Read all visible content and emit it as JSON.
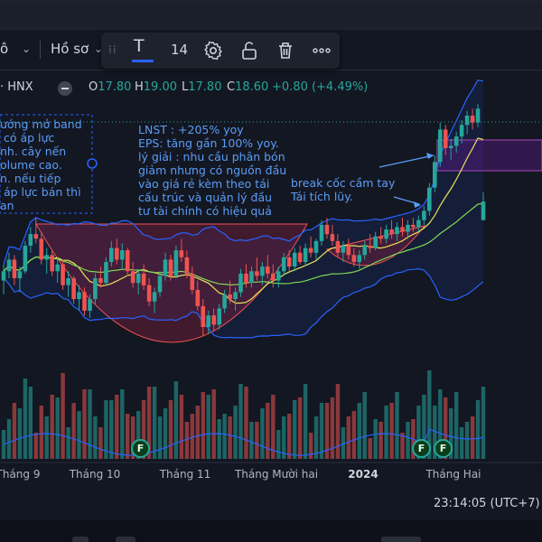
{
  "toolbar": {
    "left_fragment": "ô",
    "profile_label": "Hồ sơ",
    "text_tool_glyph": "T",
    "font_size": "14",
    "icons": [
      "chevron-down-icon",
      "drag-handle-icon",
      "text-icon",
      "settings-icon",
      "unlock-icon",
      "trash-icon",
      "more-icon"
    ]
  },
  "legend": {
    "symbol_fragment": "· HNX",
    "open_label": "O",
    "open": "17.80",
    "high_label": "H",
    "high": "19.00",
    "low_label": "L",
    "low": "17.80",
    "close_label": "C",
    "close": "18.60",
    "change": "+0.80 (+4.49%)"
  },
  "notes": {
    "left": "ướng mở band\n có áp lực\nnh. cây nến\nolume cao.\nn. nếu tiếp\n áp lực bán thì\nan",
    "middle": "LNST : +205% yoy\nEPS: tăng gần 100% yoy.\nlý giải : nhu cầu phân bón\ngiảm nhưng có nguồn đầu\nvào giá rẻ kèm theo tái\ncấu trúc và quản lý đầu\ntư tài chính có hiệu quả",
    "right": "break cốc cầm tay\nTái tích lũy."
  },
  "time_axis": [
    "Tháng 9",
    "Tháng 10",
    "Tháng 11",
    "Tháng Mười hai",
    "2024",
    "Tháng Hai"
  ],
  "clock": "23:14:05 (UTC+7)",
  "badges": [
    "F",
    "F",
    "F"
  ],
  "colors": {
    "background": "#131722",
    "up": "#26a69a",
    "down": "#ef5350",
    "ma_yellow": "#e8e35a",
    "ma_green": "#7ed957",
    "bollinger": "#2962ff",
    "annotation": "#5b9cf6",
    "cup_fill": "#7a1f3d"
  },
  "chart_data": {
    "type": "candlestick",
    "symbol": "HNX",
    "series_candles": [
      [
        15.2,
        15.9,
        14.6,
        15.6
      ],
      [
        15.6,
        16.4,
        15.3,
        16.1
      ],
      [
        16.1,
        16.3,
        15.0,
        15.3
      ],
      [
        15.3,
        15.8,
        14.7,
        15.6
      ],
      [
        15.6,
        16.9,
        15.5,
        16.7
      ],
      [
        16.7,
        17.5,
        16.4,
        17.2
      ],
      [
        17.2,
        17.9,
        16.8,
        17.0
      ],
      [
        17.0,
        17.3,
        15.9,
        16.1
      ],
      [
        16.1,
        16.6,
        15.5,
        16.3
      ],
      [
        16.3,
        16.5,
        15.4,
        15.6
      ],
      [
        15.6,
        16.2,
        15.1,
        15.9
      ],
      [
        15.9,
        16.1,
        14.8,
        15.0
      ],
      [
        15.0,
        15.6,
        14.5,
        15.3
      ],
      [
        15.3,
        15.4,
        14.2,
        14.4
      ],
      [
        14.4,
        15.0,
        13.9,
        14.7
      ],
      [
        14.7,
        14.9,
        13.7,
        13.9
      ],
      [
        13.9,
        14.6,
        13.6,
        14.4
      ],
      [
        14.4,
        15.5,
        14.2,
        15.3
      ],
      [
        15.3,
        15.8,
        14.9,
        15.1
      ],
      [
        15.1,
        16.2,
        15.0,
        16.0
      ],
      [
        16.0,
        16.9,
        15.8,
        16.6
      ],
      [
        16.6,
        17.0,
        15.9,
        16.1
      ],
      [
        16.1,
        16.8,
        15.7,
        16.5
      ],
      [
        16.5,
        16.6,
        15.4,
        15.6
      ],
      [
        15.6,
        16.0,
        14.9,
        15.1
      ],
      [
        15.1,
        15.7,
        14.6,
        15.5
      ],
      [
        15.5,
        15.9,
        14.8,
        15.0
      ],
      [
        15.0,
        15.3,
        14.1,
        14.3
      ],
      [
        14.3,
        14.9,
        13.8,
        14.7
      ],
      [
        14.7,
        15.6,
        14.5,
        15.4
      ],
      [
        15.4,
        16.4,
        15.2,
        16.1
      ],
      [
        16.1,
        16.3,
        15.2,
        15.4
      ],
      [
        15.4,
        16.7,
        15.3,
        16.5
      ],
      [
        16.5,
        17.0,
        16.0,
        16.2
      ],
      [
        16.2,
        16.5,
        15.3,
        15.5
      ],
      [
        15.5,
        15.8,
        14.6,
        14.8
      ],
      [
        14.8,
        15.2,
        13.9,
        14.1
      ],
      [
        14.1,
        14.4,
        12.8,
        13.2
      ],
      [
        13.2,
        13.9,
        12.9,
        13.7
      ],
      [
        13.7,
        14.0,
        13.0,
        13.3
      ],
      [
        13.3,
        14.2,
        13.1,
        14.0
      ],
      [
        14.0,
        14.8,
        13.8,
        14.6
      ],
      [
        14.6,
        15.2,
        14.2,
        14.4
      ],
      [
        14.4,
        14.9,
        13.9,
        14.7
      ],
      [
        14.7,
        15.7,
        14.5,
        15.5
      ],
      [
        15.5,
        15.9,
        14.9,
        15.1
      ],
      [
        15.1,
        15.8,
        14.9,
        15.6
      ],
      [
        15.6,
        16.2,
        15.2,
        15.4
      ],
      [
        15.4,
        16.0,
        15.0,
        15.8
      ],
      [
        15.8,
        16.3,
        15.3,
        15.5
      ],
      [
        15.5,
        15.9,
        14.9,
        15.2
      ],
      [
        15.2,
        15.8,
        14.9,
        15.6
      ],
      [
        15.6,
        16.4,
        15.4,
        16.2
      ],
      [
        16.2,
        16.5,
        15.6,
        15.8
      ],
      [
        15.8,
        16.6,
        15.6,
        16.4
      ],
      [
        16.4,
        16.7,
        15.9,
        16.0
      ],
      [
        16.0,
        16.8,
        15.8,
        16.6
      ],
      [
        16.6,
        17.1,
        16.2,
        16.4
      ],
      [
        16.4,
        17.0,
        16.1,
        16.9
      ],
      [
        16.9,
        17.8,
        16.7,
        17.6
      ],
      [
        17.6,
        17.9,
        17.0,
        17.2
      ],
      [
        17.2,
        17.6,
        16.7,
        16.9
      ],
      [
        16.9,
        17.2,
        16.2,
        16.4
      ],
      [
        16.4,
        16.9,
        16.0,
        16.7
      ],
      [
        16.7,
        17.0,
        16.1,
        16.3
      ],
      [
        16.3,
        16.6,
        15.8,
        16.0
      ],
      [
        16.0,
        16.5,
        15.7,
        16.3
      ],
      [
        16.3,
        16.9,
        16.1,
        16.7
      ],
      [
        16.7,
        17.2,
        16.4,
        16.6
      ],
      [
        16.6,
        17.3,
        16.5,
        17.1
      ],
      [
        17.1,
        17.5,
        16.8,
        17.0
      ],
      [
        17.0,
        17.6,
        16.8,
        17.4
      ],
      [
        17.4,
        17.8,
        17.0,
        17.2
      ],
      [
        17.2,
        17.7,
        16.9,
        17.5
      ],
      [
        17.5,
        17.9,
        17.1,
        17.3
      ],
      [
        17.3,
        17.8,
        17.0,
        17.6
      ],
      [
        17.6,
        17.9,
        17.3,
        17.5
      ],
      [
        17.5,
        18.0,
        17.3,
        17.8
      ],
      [
        17.8,
        18.4,
        17.6,
        18.2
      ],
      [
        18.2,
        19.4,
        18.0,
        19.2
      ],
      [
        19.2,
        20.6,
        19.0,
        20.3
      ],
      [
        20.3,
        22.0,
        20.1,
        21.7
      ],
      [
        21.7,
        21.9,
        20.6,
        20.9
      ],
      [
        20.9,
        21.3,
        20.4,
        21.0
      ],
      [
        21.0,
        21.6,
        20.7,
        21.4
      ],
      [
        21.4,
        22.1,
        21.1,
        21.9
      ],
      [
        21.9,
        22.5,
        21.5,
        22.3
      ],
      [
        22.3,
        22.6,
        21.7,
        22.0
      ],
      [
        22.0,
        22.8,
        21.8,
        22.6
      ],
      [
        17.8,
        19.0,
        17.8,
        18.6
      ]
    ],
    "x_ticks": [
      "Tháng 9",
      "Tháng 10",
      "Tháng 11",
      "Tháng Mười hai",
      "2024",
      "Tháng Hai"
    ]
  }
}
